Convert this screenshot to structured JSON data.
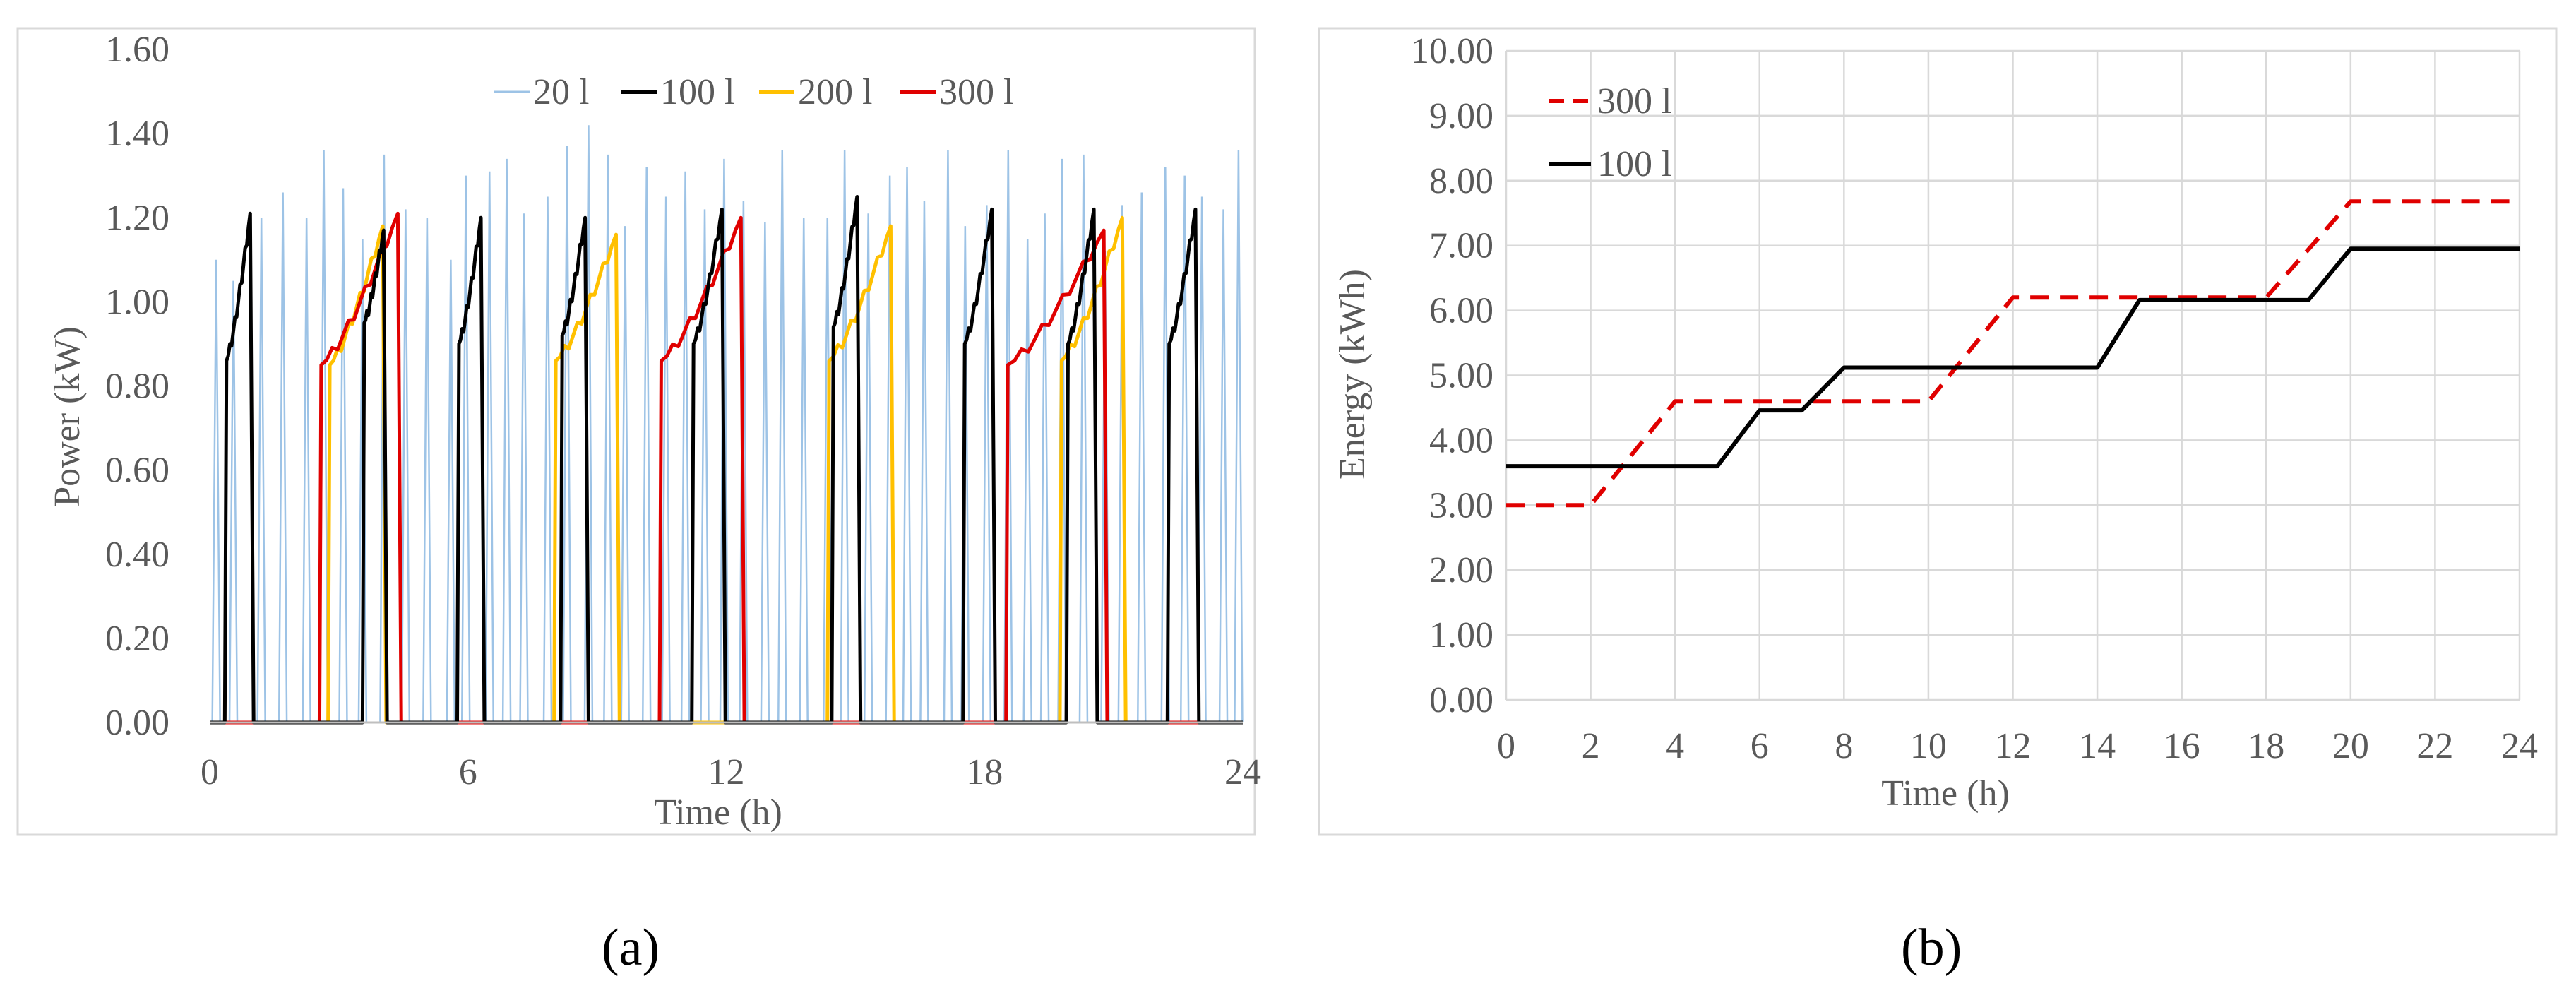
{
  "panels": {
    "a": {
      "label": "(a)"
    },
    "b": {
      "label": "(b)"
    }
  },
  "chart_data": [
    {
      "type": "line",
      "xlabel": "Time (h)",
      "ylabel": "Power (kW)",
      "xlim": [
        0,
        24
      ],
      "ylim": [
        0,
        1.6
      ],
      "xticks": [
        "0",
        "6",
        "12",
        "18",
        "24"
      ],
      "yticks": [
        "0.00",
        "0.20",
        "0.40",
        "0.60",
        "0.80",
        "1.00",
        "1.20",
        "1.40",
        "1.60"
      ],
      "grid": false,
      "legend_position": "top",
      "series": [
        {
          "name": "20 l",
          "color": "#9dc3e6",
          "style": "spikes",
          "peaks": [
            [
              0.15,
              1.1
            ],
            [
              0.55,
              1.05
            ],
            [
              1.2,
              1.2
            ],
            [
              1.7,
              1.26
            ],
            [
              2.25,
              1.2
            ],
            [
              2.65,
              1.36
            ],
            [
              3.1,
              1.27
            ],
            [
              3.55,
              1.15
            ],
            [
              4.05,
              1.35
            ],
            [
              4.55,
              1.22
            ],
            [
              5.05,
              1.2
            ],
            [
              5.6,
              1.1
            ],
            [
              5.95,
              1.3
            ],
            [
              6.5,
              1.31
            ],
            [
              6.9,
              1.34
            ],
            [
              7.3,
              1.21
            ],
            [
              7.85,
              1.25
            ],
            [
              8.3,
              1.37
            ],
            [
              8.8,
              1.42
            ],
            [
              9.25,
              1.35
            ],
            [
              9.65,
              1.18
            ],
            [
              10.15,
              1.32
            ],
            [
              10.6,
              1.25
            ],
            [
              11.05,
              1.31
            ],
            [
              11.5,
              1.22
            ],
            [
              11.95,
              1.34
            ],
            [
              12.4,
              1.24
            ],
            [
              12.9,
              1.19
            ],
            [
              13.3,
              1.36
            ],
            [
              13.8,
              1.2
            ],
            [
              14.35,
              1.2
            ],
            [
              14.75,
              1.36
            ],
            [
              15.3,
              1.21
            ],
            [
              15.8,
              1.3
            ],
            [
              16.2,
              1.32
            ],
            [
              16.6,
              1.24
            ],
            [
              17.15,
              1.36
            ],
            [
              17.55,
              1.18
            ],
            [
              18.05,
              1.23
            ],
            [
              18.55,
              1.36
            ],
            [
              19.0,
              1.15
            ],
            [
              19.4,
              1.21
            ],
            [
              19.8,
              1.34
            ],
            [
              20.3,
              1.35
            ],
            [
              20.8,
              1.12
            ],
            [
              21.2,
              1.23
            ],
            [
              21.65,
              1.26
            ],
            [
              22.2,
              1.32
            ],
            [
              22.65,
              1.3
            ],
            [
              23.05,
              1.25
            ],
            [
              23.55,
              1.22
            ],
            [
              23.9,
              1.36
            ]
          ],
          "spike_halfwidth_h": 0.09
        },
        {
          "name": "100 l",
          "color": "#000000",
          "style": "pulses",
          "pulses": [
            {
              "start": 0.35,
              "end": 1.02,
              "from": 0.86,
              "to": 1.21
            },
            {
              "start": 3.55,
              "end": 4.12,
              "from": 0.95,
              "to": 1.17
            },
            {
              "start": 5.75,
              "end": 6.38,
              "from": 0.9,
              "to": 1.2
            },
            {
              "start": 8.15,
              "end": 8.8,
              "from": 0.92,
              "to": 1.2
            },
            {
              "start": 11.2,
              "end": 11.98,
              "from": 0.9,
              "to": 1.22
            },
            {
              "start": 14.45,
              "end": 15.12,
              "from": 0.94,
              "to": 1.25
            },
            {
              "start": 17.5,
              "end": 18.25,
              "from": 0.9,
              "to": 1.22
            },
            {
              "start": 19.9,
              "end": 20.62,
              "from": 0.9,
              "to": 1.22
            },
            {
              "start": 22.25,
              "end": 22.98,
              "from": 0.9,
              "to": 1.22
            }
          ]
        },
        {
          "name": "200 l",
          "color": "#ffc000",
          "style": "pulses",
          "pulses": [
            {
              "start": 2.75,
              "end": 4.1,
              "from": 0.85,
              "to": 1.18
            },
            {
              "start": 8.0,
              "end": 9.52,
              "from": 0.86,
              "to": 1.16
            },
            {
              "start": 14.35,
              "end": 15.9,
              "from": 0.86,
              "to": 1.18
            },
            {
              "start": 19.75,
              "end": 21.28,
              "from": 0.86,
              "to": 1.2
            }
          ]
        },
        {
          "name": "300 l",
          "color": "#e00000",
          "style": "pulses",
          "pulses": [
            {
              "start": 2.55,
              "end": 4.45,
              "from": 0.85,
              "to": 1.21
            },
            {
              "start": 10.45,
              "end": 12.42,
              "from": 0.86,
              "to": 1.2
            },
            {
              "start": 18.5,
              "end": 20.85,
              "from": 0.85,
              "to": 1.17
            }
          ]
        }
      ]
    },
    {
      "type": "line",
      "xlabel": "Time (h)",
      "ylabel": "Energy (kWh)",
      "xlim": [
        0,
        24
      ],
      "ylim": [
        0,
        10
      ],
      "xticks": [
        "0",
        "2",
        "4",
        "6",
        "8",
        "10",
        "12",
        "14",
        "16",
        "18",
        "20",
        "22",
        "24"
      ],
      "yticks": [
        "0.00",
        "1.00",
        "2.00",
        "3.00",
        "4.00",
        "5.00",
        "6.00",
        "7.00",
        "8.00",
        "9.00",
        "10.00"
      ],
      "grid": true,
      "legend_position": "top-left",
      "series": [
        {
          "name": "300 l",
          "color": "#e00000",
          "dash": true,
          "x": [
            0,
            2,
            4,
            10,
            12,
            18,
            20,
            24
          ],
          "y": [
            3.0,
            3.0,
            4.6,
            4.6,
            6.2,
            6.2,
            7.68,
            7.68
          ]
        },
        {
          "name": "100 l",
          "color": "#000000",
          "dash": false,
          "x": [
            0,
            5,
            6,
            7,
            8,
            14,
            15,
            19,
            20,
            24
          ],
          "y": [
            3.6,
            3.6,
            4.46,
            4.46,
            5.12,
            5.12,
            6.16,
            6.16,
            6.95,
            6.95
          ]
        }
      ]
    }
  ]
}
